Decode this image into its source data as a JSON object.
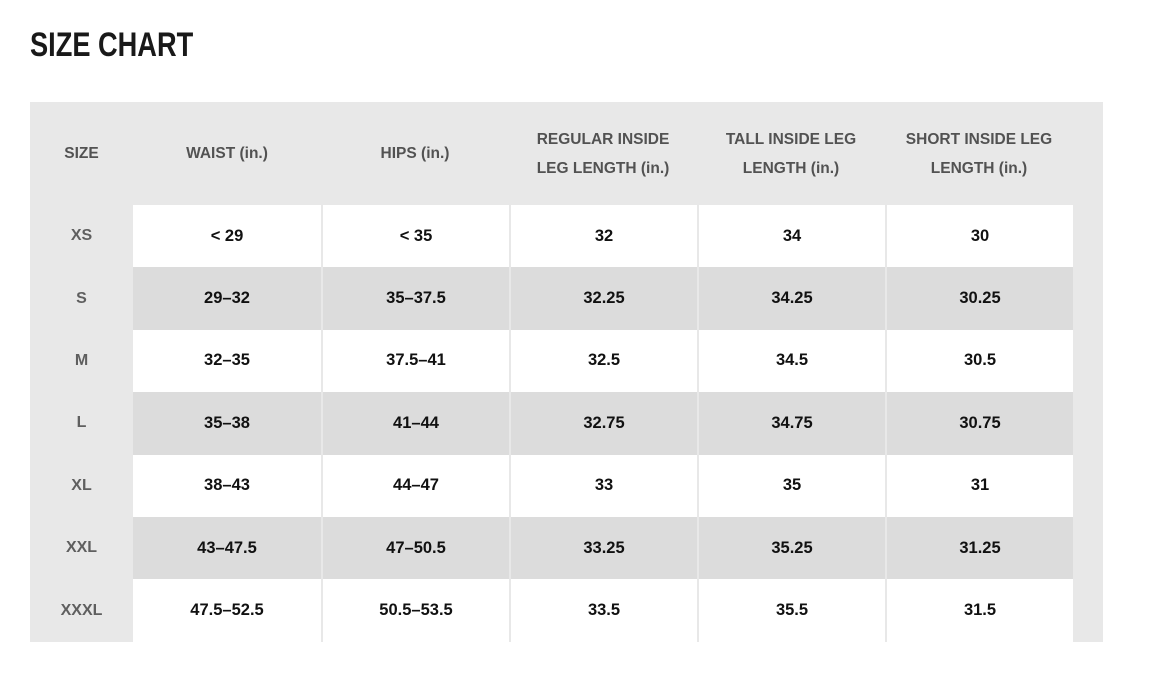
{
  "page_title": "SIZE CHART",
  "colors": {
    "page_background": "#ffffff",
    "table_frame_gray": "#e8e8e8",
    "striped_row_gray": "#dcdcdc",
    "plain_row_white": "#ffffff",
    "header_text": "#525252",
    "size_label_text": "#5f5f5f",
    "value_text": "#111111",
    "title_text": "#191919"
  },
  "table": {
    "columns": [
      {
        "label": "SIZE"
      },
      {
        "label": "WAIST (in.)"
      },
      {
        "label": "HIPS (in.)"
      },
      {
        "label": "REGULAR INSIDE LEG LENGTH (in.)"
      },
      {
        "label": "TALL INSIDE LEG LENGTH (in.)"
      },
      {
        "label": "SHORT INSIDE LEG LENGTH (in.)"
      }
    ],
    "rows": [
      {
        "size": "XS",
        "waist": "< 29",
        "hips": "< 35",
        "regular_inside_leg": "32",
        "tall_inside_leg": "34",
        "short_inside_leg": "30"
      },
      {
        "size": "S",
        "waist": "29–32",
        "hips": "35–37.5",
        "regular_inside_leg": "32.25",
        "tall_inside_leg": "34.25",
        "short_inside_leg": "30.25"
      },
      {
        "size": "M",
        "waist": "32–35",
        "hips": "37.5–41",
        "regular_inside_leg": "32.5",
        "tall_inside_leg": "34.5",
        "short_inside_leg": "30.5"
      },
      {
        "size": "L",
        "waist": "35–38",
        "hips": "41–44",
        "regular_inside_leg": "32.75",
        "tall_inside_leg": "34.75",
        "short_inside_leg": "30.75"
      },
      {
        "size": "XL",
        "waist": "38–43",
        "hips": "44–47",
        "regular_inside_leg": "33",
        "tall_inside_leg": "35",
        "short_inside_leg": "31"
      },
      {
        "size": "XXL",
        "waist": "43–47.5",
        "hips": "47–50.5",
        "regular_inside_leg": "33.25",
        "tall_inside_leg": "35.25",
        "short_inside_leg": "31.25"
      },
      {
        "size": "XXXL",
        "waist": "47.5–52.5",
        "hips": "50.5–53.5",
        "regular_inside_leg": "33.5",
        "tall_inside_leg": "35.5",
        "short_inside_leg": "31.5"
      }
    ]
  }
}
